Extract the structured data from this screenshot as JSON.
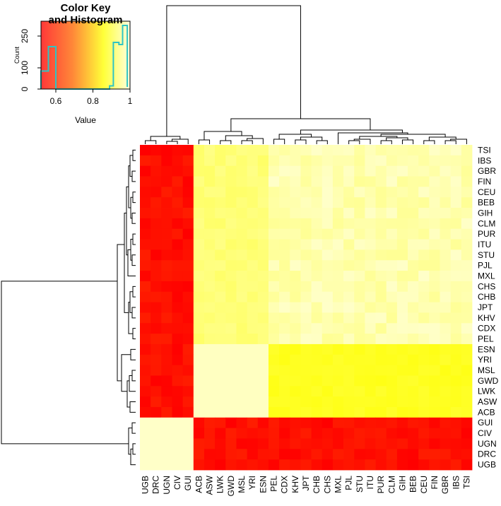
{
  "chart_data": {
    "type": "heatmap",
    "color_key": {
      "title_line1": "Color Key",
      "title_line2": "and Histogram",
      "xlabel": "Value",
      "ylabel": "Count",
      "x_range": [
        0.52,
        1.0
      ],
      "x_ticks": [
        "0.6",
        "0.8",
        "1"
      ],
      "y_ticks": [
        "0",
        "100",
        "250"
      ],
      "y_max": 320,
      "histogram_color": "#2ec4c4",
      "histogram": [
        {
          "x": 0.52,
          "count": 0
        },
        {
          "x": 0.52,
          "count": 85
        },
        {
          "x": 0.56,
          "count": 85
        },
        {
          "x": 0.56,
          "count": 200
        },
        {
          "x": 0.6,
          "count": 200
        },
        {
          "x": 0.6,
          "count": 0
        },
        {
          "x": 0.89,
          "count": 0
        },
        {
          "x": 0.89,
          "count": 15
        },
        {
          "x": 0.91,
          "count": 15
        },
        {
          "x": 0.91,
          "count": 220
        },
        {
          "x": 0.94,
          "count": 220
        },
        {
          "x": 0.94,
          "count": 210
        },
        {
          "x": 0.96,
          "count": 210
        },
        {
          "x": 0.96,
          "count": 300
        },
        {
          "x": 0.985,
          "count": 300
        },
        {
          "x": 0.985,
          "count": 10
        }
      ]
    },
    "row_labels": [
      "TSI",
      "IBS",
      "GBR",
      "FIN",
      "CEU",
      "BEB",
      "GIH",
      "CLM",
      "PUR",
      "ITU",
      "STU",
      "PJL",
      "MXL",
      "CHS",
      "CHB",
      "JPT",
      "KHV",
      "CDX",
      "PEL",
      "ESN",
      "YRI",
      "MSL",
      "GWD",
      "LWK",
      "ASW",
      "ACB",
      "GUI",
      "CIV",
      "UGN",
      "DRC",
      "UGB"
    ],
    "col_labels": [
      "UGB",
      "DRC",
      "UGN",
      "CIV",
      "GUI",
      "ACB",
      "ASW",
      "LWK",
      "GWD",
      "MSL",
      "YRI",
      "ESN",
      "PEL",
      "CDX",
      "KHV",
      "JPT",
      "CHB",
      "CHS",
      "MXL",
      "PJL",
      "STU",
      "ITU",
      "PUR",
      "CLM",
      "GIH",
      "BEB",
      "CEU",
      "FIN",
      "GBR",
      "IBS",
      "TSI"
    ],
    "color_scale": {
      "low": 0.52,
      "high": 1.0
    }
  }
}
